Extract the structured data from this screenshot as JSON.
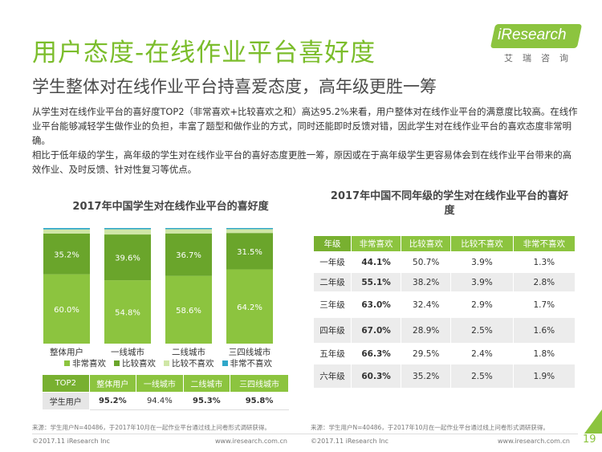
{
  "title": "用户态度-在线作业平台喜好度",
  "subtitle": "学生整体对在线作业平台持喜爱态度，高年级更胜一筹",
  "logo": {
    "brand": "iResearch",
    "cn": "艾瑞咨询"
  },
  "paragraphs": [
    "从学生对在线作业平台的喜好度TOP2（非常喜欢+比较喜欢之和）高达95.2%来看，用户整体对在线作业平台的满意度比较高。在线作业平台能够减轻学生做作业的负担，丰富了题型和做作业的方式，同时还能即时反馈对错，因此学生对在线作业平台的喜欢态度非常明确。",
    "相比于低年级的学生，高年级的学生对在线作业平台的喜好态度更胜一筹，原因或在于高年级学生更容易体会到在线作业平台带来的高效作业、及时反馈、针对性复习等优点。"
  ],
  "chart_data": [
    {
      "type": "bar",
      "stacked": true,
      "title": "2017年中国学生对在线作业平台的喜好度",
      "categories": [
        "整体用户",
        "一线城市",
        "二线城市",
        "三四线城市"
      ],
      "series": [
        {
          "name": "非常喜欢",
          "color": "#8cc43f",
          "values": [
            60.0,
            54.8,
            58.6,
            64.2
          ],
          "labels": [
            "60.0%",
            "54.8%",
            "58.6%",
            "64.2%"
          ]
        },
        {
          "name": "比较喜欢",
          "color": "#6aa52b",
          "values": [
            35.2,
            39.6,
            36.7,
            31.5
          ],
          "labels": [
            "35.2%",
            "39.6%",
            "36.7%",
            "31.5%"
          ]
        },
        {
          "name": "比较不喜欢",
          "color": "#cfe6a6",
          "values": [
            3.6,
            4.5,
            3.7,
            3.3
          ],
          "labels": []
        },
        {
          "name": "非常不喜欢",
          "color": "#2fa7c9",
          "values": [
            1.2,
            1.1,
            1.0,
            1.0
          ],
          "labels": []
        }
      ],
      "ylim": [
        0,
        100
      ]
    },
    {
      "type": "table",
      "title": "2017年中国不同年级的学生对在线作业平台的喜好度",
      "columns": [
        "年级",
        "非常喜欢",
        "比较喜欢",
        "比较不喜欢",
        "非常不喜欢"
      ],
      "rows": [
        [
          "一年级",
          "44.1%",
          "50.7%",
          "3.9%",
          "1.3%"
        ],
        [
          "二年级",
          "55.1%",
          "38.2%",
          "3.9%",
          "2.8%"
        ],
        [
          "三年级",
          "63.0%",
          "32.4%",
          "2.9%",
          "1.7%"
        ],
        [
          "四年级",
          "67.0%",
          "28.9%",
          "2.5%",
          "1.6%"
        ],
        [
          "五年级",
          "66.3%",
          "29.5%",
          "2.4%",
          "1.8%"
        ],
        [
          "六年级",
          "60.3%",
          "35.2%",
          "2.5%",
          "1.9%"
        ]
      ]
    }
  ],
  "top2_table": {
    "headers": [
      "TOP2",
      "整体用户",
      "一线城市",
      "二线城市",
      "三四线城市"
    ],
    "row_label": "学生用户",
    "values": [
      "95.2%",
      "94.4%",
      "95.3%",
      "95.8%"
    ]
  },
  "sources": {
    "left": "来源：学生用户N=40486，于2017年10月在一起作业平台通过线上问卷形式调研获得。",
    "right": "来源：学生用户N=40486，于2017年10月在一起作业平台通过线上问卷形式调研获得。"
  },
  "footer": {
    "copyright_left": "©2017.11 iResearch Inc",
    "url_left": "www.iresearch.com.cn",
    "copyright_right": "©2017.11 iResearch Inc",
    "url_right": "www.iresearch.com.cn",
    "page": "19"
  }
}
